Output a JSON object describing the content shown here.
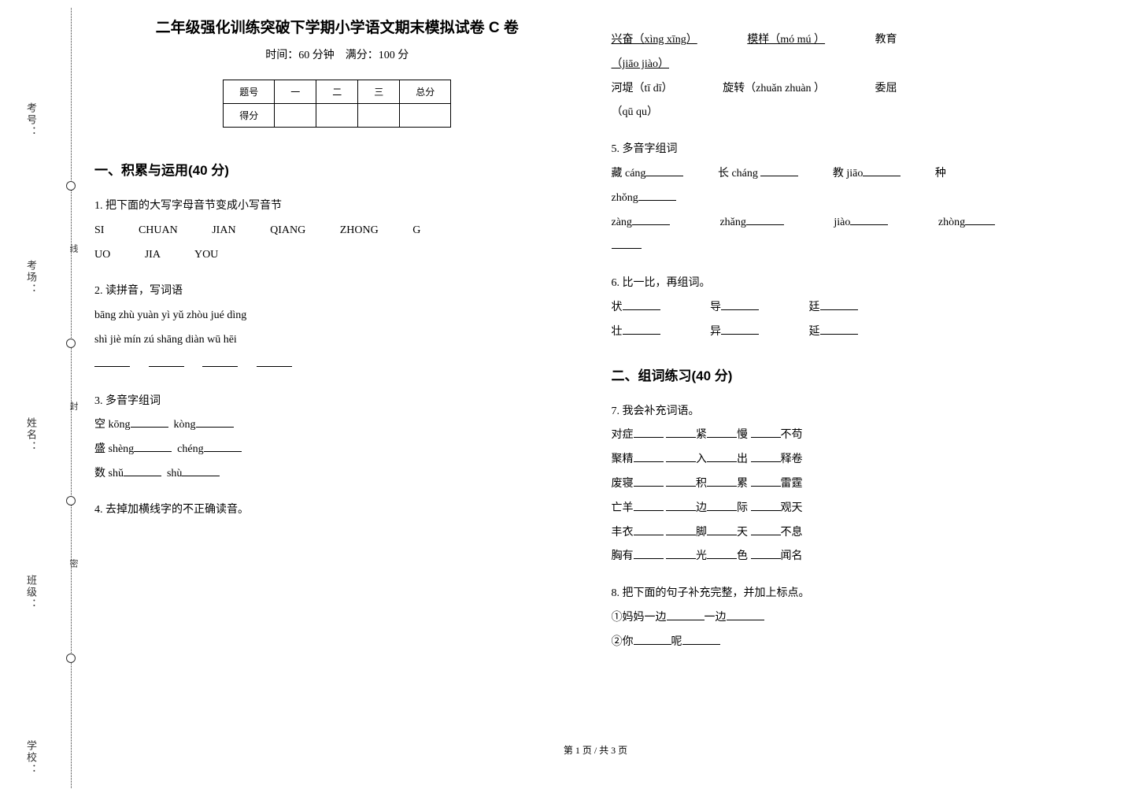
{
  "binding": {
    "labels": [
      "考号：",
      "考场：",
      "姓名：",
      "班级：",
      "学校："
    ],
    "chars": "线封密"
  },
  "title": "二年级强化训练突破下学期小学语文期末模拟试卷 C 卷",
  "subtitle_time": "时间：60 分钟",
  "subtitle_score": "满分：100 分",
  "score_table": {
    "header": [
      "题号",
      "一",
      "二",
      "三",
      "总分"
    ],
    "row_label": "得分"
  },
  "section1": {
    "header": "一、积累与运用(40 分)",
    "q1": {
      "num": "1. ",
      "text": "把下面的大写字母音节变成小写音节",
      "row1": [
        "SI",
        "CHUAN",
        "JIAN",
        "QIANG",
        "ZHONG",
        "G"
      ],
      "row2": [
        "UO",
        "JIA",
        "YOU"
      ]
    },
    "q2": {
      "num": "2. ",
      "text": "读拼音，写词语",
      "line1": "bāng zhù  yuàn yì   yǔ zhòu    jué dìng",
      "line2": "shì jiè   mín zú   shāng diàn  wū hēi"
    },
    "q3": {
      "num": "3. ",
      "text": "多音字组词",
      "items": [
        {
          "char": "空",
          "py1": "kōng",
          "py2": "kòng"
        },
        {
          "char": "盛",
          "py1": "shèng",
          "py2": "chéng"
        },
        {
          "char": "数",
          "py1": "shǔ",
          "py2": "shù"
        }
      ]
    },
    "q4": {
      "num": "4. ",
      "text": "去掉加横线字的不正确读音。",
      "line1_a": "兴奋（xìng    xīng）",
      "line1_b": "模样（mó    mú ）",
      "line1_c": "教育",
      "line2": "（jiāo    jiào）",
      "line3_a": "河堤（tī   dī）",
      "line3_b": "旋转（zhuǎn   zhuàn ）",
      "line3_c": "委屈",
      "line4": "（qū   qu）"
    },
    "q5": {
      "num": "5. ",
      "text": "多音字组词",
      "row1": [
        {
          "char": "藏",
          "py": "cáng"
        },
        {
          "char": "长",
          "py": "cháng"
        },
        {
          "char": "教",
          "py": "jiāo"
        },
        {
          "char": "种",
          "py": ""
        }
      ],
      "row1_tail": "zhǒng",
      "row2": [
        "zàng",
        "zhǎng",
        "jiào",
        "zhòng"
      ]
    },
    "q6": {
      "num": "6. ",
      "text": "比一比，再组词。",
      "row1": [
        "状",
        "导",
        "廷"
      ],
      "row2": [
        "壮",
        "异",
        "延"
      ]
    }
  },
  "section2": {
    "header": "二、组词练习(40 分)",
    "q7": {
      "num": "7. ",
      "text": "我会补充词语。",
      "rows": [
        [
          "对症",
          "",
          "",
          "紧",
          "慢",
          "",
          "不苟"
        ],
        [
          "聚精",
          "",
          "",
          "入",
          "出",
          "",
          "释卷"
        ],
        [
          "废寝",
          "",
          "",
          "积",
          "累",
          "",
          "雷霆"
        ],
        [
          "亡羊",
          "",
          "",
          "边",
          "际",
          "",
          "观天"
        ],
        [
          "丰衣",
          "",
          "",
          "脚",
          "天",
          "",
          "不息"
        ],
        [
          "胸有",
          "",
          "",
          "光",
          "色",
          "",
          "闻名"
        ]
      ]
    },
    "q8": {
      "num": "8. ",
      "text": "把下面的句子补充完整，并加上标点。",
      "line1_a": "①妈妈一边",
      "line1_b": "一边",
      "line2_a": "②你",
      "line2_b": "呢"
    }
  },
  "footer": "第 1 页  /  共 3 页"
}
